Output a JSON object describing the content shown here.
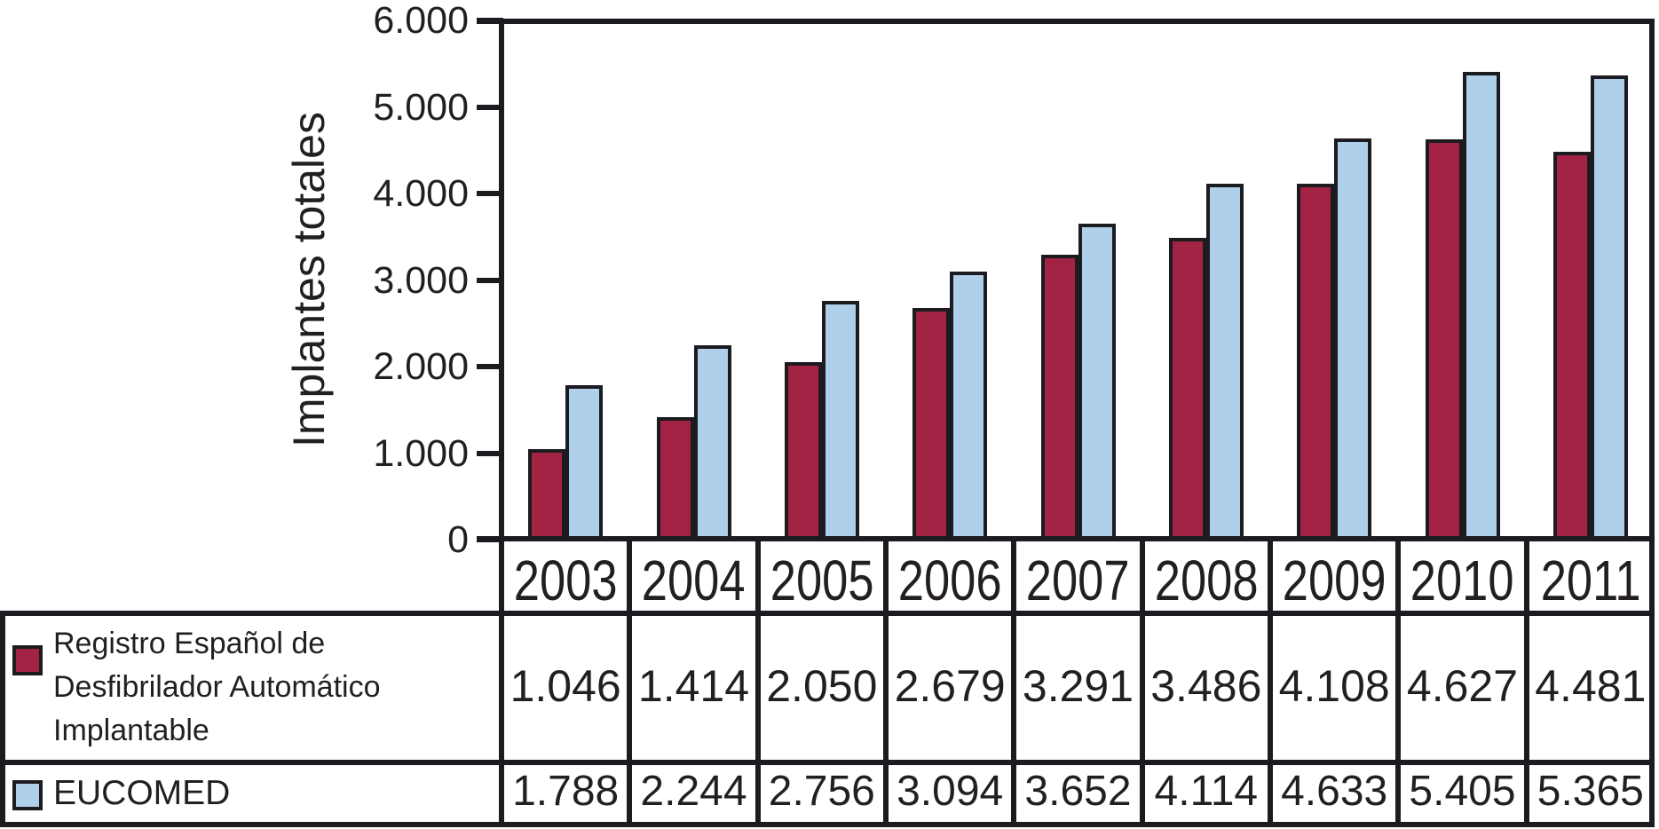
{
  "colors": {
    "series1_fill": "#A22343",
    "series2_fill": "#AFD0EB",
    "outline": "#1B1B20",
    "text": "#231F20",
    "background": "#FFFFFF"
  },
  "legend": {
    "series1_lines": [
      "Registro Español de",
      "Desfibrilador Automático",
      "Implantable"
    ],
    "series2_label": "EUCOMED"
  },
  "chart_data": {
    "type": "bar",
    "title": "",
    "xlabel": "",
    "ylabel": "Implantes totales",
    "categories": [
      "2003",
      "2004",
      "2005",
      "2006",
      "2007",
      "2008",
      "2009",
      "2010",
      "2011"
    ],
    "series": [
      {
        "name": "Registro Español de Desfibrilador Automático Implantable",
        "color": "#A22343",
        "values": [
          1046,
          1414,
          2050,
          2679,
          3291,
          3486,
          4108,
          4627,
          4481
        ],
        "labels": [
          "1.046",
          "1.414",
          "2.050",
          "2.679",
          "3.291",
          "3.486",
          "4.108",
          "4.627",
          "4.481"
        ]
      },
      {
        "name": "EUCOMED",
        "color": "#AFD0EB",
        "values": [
          1788,
          2244,
          2756,
          3094,
          3652,
          4114,
          4633,
          5405,
          5365
        ],
        "labels": [
          "1.788",
          "2.244",
          "2.756",
          "3.094",
          "3.652",
          "4.114",
          "4.633",
          "5.405",
          "5.365"
        ]
      }
    ],
    "y_axis": {
      "min": 0,
      "max": 6000,
      "step": 1000,
      "tick_labels": [
        "0",
        "1.000",
        "2.000",
        "3.000",
        "4.000",
        "5.000",
        "6.000"
      ]
    },
    "grid": false,
    "legend_position": "table-left",
    "table_below_axis": true
  }
}
